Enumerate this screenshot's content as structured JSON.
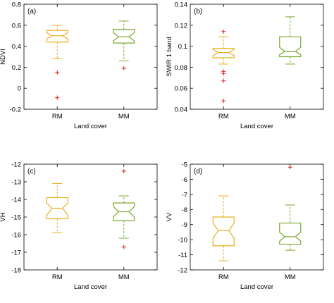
{
  "chart_data": [
    {
      "type": "box",
      "panel_label": "(a)",
      "xlabel": "Land cover",
      "ylabel": "NDVI",
      "ylim": [
        -0.2,
        0.8
      ],
      "yticks": [
        "-0.2",
        "0",
        "0.2",
        "0.4",
        "0.6",
        "0.8"
      ],
      "ytick_values": [
        -0.2,
        0,
        0.2,
        0.4,
        0.6,
        0.8
      ],
      "categories": [
        "RM",
        "MM"
      ],
      "boxes": [
        {
          "category": "RM",
          "color": "#e8b020",
          "whisker_low": 0.28,
          "q1": 0.44,
          "notch_low": 0.47,
          "median": 0.5,
          "notch_high": 0.53,
          "q3": 0.55,
          "whisker_high": 0.6,
          "outliers": [
            0.15,
            -0.09
          ]
        },
        {
          "category": "MM",
          "color": "#7aa830",
          "whisker_low": 0.26,
          "q1": 0.43,
          "notch_low": 0.45,
          "median": 0.49,
          "notch_high": 0.53,
          "q3": 0.56,
          "whisker_high": 0.64,
          "outliers": [
            0.19
          ]
        }
      ]
    },
    {
      "type": "box",
      "panel_label": "(b)",
      "xlabel": "Land cover",
      "ylabel": "SWIR 1 band",
      "ylim": [
        0.04,
        0.14
      ],
      "yticks": [
        "0.04",
        "0.06",
        "0.08",
        "0.1",
        "0.12",
        "0.14"
      ],
      "ytick_values": [
        0.04,
        0.06,
        0.08,
        0.1,
        0.12,
        0.14
      ],
      "categories": [
        "RM",
        "MM"
      ],
      "boxes": [
        {
          "category": "RM",
          "color": "#e8b020",
          "whisker_low": 0.083,
          "q1": 0.089,
          "notch_low": 0.091,
          "median": 0.094,
          "notch_high": 0.097,
          "q3": 0.098,
          "whisker_high": 0.109,
          "outliers": [
            0.114,
            0.076,
            0.074,
            0.067,
            0.048
          ]
        },
        {
          "category": "MM",
          "color": "#7aa830",
          "whisker_low": 0.083,
          "q1": 0.09,
          "notch_low": 0.092,
          "median": 0.095,
          "notch_high": 0.099,
          "q3": 0.109,
          "whisker_high": 0.128,
          "outliers": []
        }
      ]
    },
    {
      "type": "box",
      "panel_label": "(c)",
      "xlabel": "Land cover",
      "ylabel": "VH",
      "ylim": [
        -18,
        -12
      ],
      "yticks": [
        "-18",
        "-17",
        "-16",
        "-15",
        "-14",
        "-13",
        "-12"
      ],
      "ytick_values": [
        -18,
        -17,
        -16,
        -15,
        -14,
        -13,
        -12
      ],
      "categories": [
        "RM",
        "MM"
      ],
      "boxes": [
        {
          "category": "RM",
          "color": "#e8b020",
          "whisker_low": -15.9,
          "q1": -15.1,
          "notch_low": -14.9,
          "median": -14.5,
          "notch_high": -14.2,
          "q3": -13.9,
          "whisker_high": -13.1,
          "outliers": []
        },
        {
          "category": "MM",
          "color": "#7aa830",
          "whisker_low": -16.2,
          "q1": -15.2,
          "notch_low": -15.0,
          "median": -14.7,
          "notch_high": -14.4,
          "q3": -14.2,
          "whisker_high": -13.8,
          "outliers": [
            -12.4,
            -16.7
          ]
        }
      ]
    },
    {
      "type": "box",
      "panel_label": "(d)",
      "xlabel": "Land cover",
      "ylabel": "VV",
      "ylim": [
        -12,
        -5
      ],
      "yticks": [
        "-12",
        "-11",
        "-10",
        "-9",
        "-8",
        "-7",
        "-6",
        "-5"
      ],
      "ytick_values": [
        -12,
        -11,
        -10,
        -9,
        -8,
        -7,
        -6,
        -5
      ],
      "categories": [
        "RM",
        "MM"
      ],
      "boxes": [
        {
          "category": "RM",
          "color": "#e8b020",
          "whisker_low": -11.4,
          "q1": -10.4,
          "notch_low": -9.9,
          "median": -9.4,
          "notch_high": -8.9,
          "q3": -8.5,
          "whisker_high": -7.1,
          "outliers": []
        },
        {
          "category": "MM",
          "color": "#7aa830",
          "whisker_low": -10.7,
          "q1": -10.3,
          "notch_low": -10.1,
          "median": -9.8,
          "notch_high": -9.5,
          "q3": -8.9,
          "whisker_high": -7.7,
          "outliers": [
            -5.2
          ]
        }
      ]
    }
  ],
  "outlier_color": "#e03030",
  "axis_color": "#000000"
}
